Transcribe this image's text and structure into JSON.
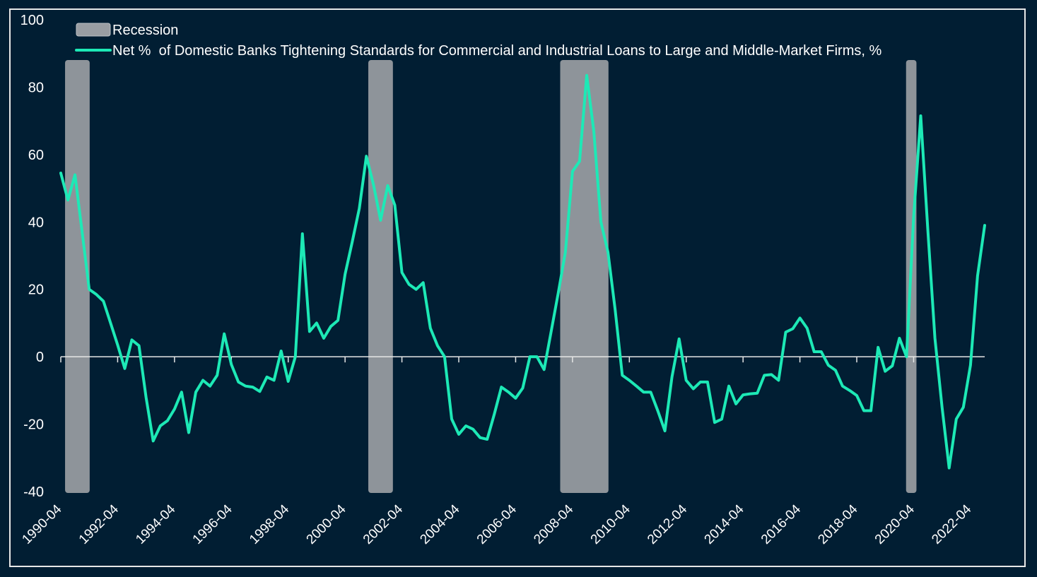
{
  "chart_data": {
    "type": "line",
    "title": "",
    "xlabel": "",
    "ylabel": "",
    "ylim": [
      -40,
      100
    ],
    "yticks": [
      -40,
      -20,
      0,
      20,
      40,
      60,
      80,
      100
    ],
    "xlim": [
      "1990-04",
      "1990-01"
    ],
    "xticks": [
      "1990-04",
      "1992-04",
      "1994-04",
      "1996-04",
      "1998-04",
      "2000-04",
      "2002-04",
      "2004-04",
      "2006-04",
      "2008-04",
      "2010-04",
      "2012-04",
      "2014-04",
      "2016-04",
      "2018-04",
      "2020-04",
      "2022-04"
    ],
    "grid": false,
    "legend_position": "top-left",
    "recession_label": "Recession",
    "recession_color": "#9a9ea3",
    "recessions": [
      {
        "start": "1990-07",
        "end": "1991-03"
      },
      {
        "start": "2001-03",
        "end": "2001-11"
      },
      {
        "start": "2007-12",
        "end": "2009-06"
      },
      {
        "start": "2020-02",
        "end": "2020-04"
      }
    ],
    "series": [
      {
        "name": "Net %  of Domestic Banks Tightening Standards for Commercial and Industrial Loans to Large and Middle-Market Firms, %",
        "color": "#1de9b6",
        "points": [
          [
            "1990-04",
            54.5
          ],
          [
            "1990-07",
            46.5
          ],
          [
            "1990-10",
            54
          ],
          [
            "1991-01",
            37
          ],
          [
            "1991-04",
            20
          ],
          [
            "1991-07",
            18.5
          ],
          [
            "1991-10",
            16.5
          ],
          [
            "1992-01",
            10
          ],
          [
            "1992-04",
            3.5
          ],
          [
            "1992-07",
            -3.5
          ],
          [
            "1992-10",
            5
          ],
          [
            "1993-01",
            3.3
          ],
          [
            "1993-04",
            -12
          ],
          [
            "1993-07",
            -25
          ],
          [
            "1993-10",
            -20.5
          ],
          [
            "1994-01",
            -19
          ],
          [
            "1994-04",
            -15.5
          ],
          [
            "1994-07",
            -10.5
          ],
          [
            "1994-10",
            -22.5
          ],
          [
            "1995-01",
            -10.5
          ],
          [
            "1995-04",
            -7
          ],
          [
            "1995-07",
            -8.7
          ],
          [
            "1995-10",
            -5.5
          ],
          [
            "1996-01",
            6.8
          ],
          [
            "1996-04",
            -2.3
          ],
          [
            "1996-07",
            -7.5
          ],
          [
            "1996-10",
            -8.7
          ],
          [
            "1997-01",
            -9
          ],
          [
            "1997-04",
            -10.3
          ],
          [
            "1997-07",
            -6
          ],
          [
            "1997-10",
            -7
          ],
          [
            "1998-01",
            1.7
          ],
          [
            "1998-04",
            -7.3
          ],
          [
            "1998-07",
            0
          ],
          [
            "1998-10",
            36.5
          ],
          [
            "1999-01",
            7.5
          ],
          [
            "1999-04",
            10
          ],
          [
            "1999-07",
            5.5
          ],
          [
            "1999-10",
            9
          ],
          [
            "2000-01",
            10.8
          ],
          [
            "2000-04",
            24.5
          ],
          [
            "2000-07",
            34
          ],
          [
            "2000-10",
            44
          ],
          [
            "2001-01",
            59.5
          ],
          [
            "2001-04",
            51
          ],
          [
            "2001-07",
            40.5
          ],
          [
            "2001-10",
            50.8
          ],
          [
            "2002-01",
            45
          ],
          [
            "2002-04",
            25
          ],
          [
            "2002-07",
            21.5
          ],
          [
            "2002-10",
            20
          ],
          [
            "2003-01",
            22
          ],
          [
            "2003-04",
            8.5
          ],
          [
            "2003-07",
            3.3
          ],
          [
            "2003-10",
            0
          ],
          [
            "2004-01",
            -18.5
          ],
          [
            "2004-04",
            -23
          ],
          [
            "2004-07",
            -20.5
          ],
          [
            "2004-10",
            -21.5
          ],
          [
            "2005-01",
            -24
          ],
          [
            "2005-04",
            -24.5
          ],
          [
            "2005-07",
            -17
          ],
          [
            "2005-10",
            -9
          ],
          [
            "2006-01",
            -10.5
          ],
          [
            "2006-04",
            -12.3
          ],
          [
            "2006-07",
            -9.3
          ],
          [
            "2006-10",
            0
          ],
          [
            "2007-01",
            0
          ],
          [
            "2007-04",
            -3.8
          ],
          [
            "2007-07",
            7.5
          ],
          [
            "2007-10",
            19
          ],
          [
            "2008-01",
            31
          ],
          [
            "2008-04",
            55
          ],
          [
            "2008-07",
            58
          ],
          [
            "2008-10",
            83.5
          ],
          [
            "2009-01",
            67
          ],
          [
            "2009-04",
            40
          ],
          [
            "2009-07",
            31
          ],
          [
            "2009-10",
            14
          ],
          [
            "2010-01",
            -5.5
          ],
          [
            "2010-04",
            -7
          ],
          [
            "2010-07",
            -8.7
          ],
          [
            "2010-10",
            -10.5
          ],
          [
            "2011-01",
            -10.5
          ],
          [
            "2011-04",
            -16
          ],
          [
            "2011-07",
            -22
          ],
          [
            "2011-10",
            -6
          ],
          [
            "2012-01",
            5.3
          ],
          [
            "2012-04",
            -7
          ],
          [
            "2012-07",
            -9.5
          ],
          [
            "2012-10",
            -7.5
          ],
          [
            "2013-01",
            -7.5
          ],
          [
            "2013-04",
            -19.5
          ],
          [
            "2013-07",
            -18.5
          ],
          [
            "2013-10",
            -8.7
          ],
          [
            "2014-01",
            -14
          ],
          [
            "2014-04",
            -11.3
          ],
          [
            "2014-07",
            -11
          ],
          [
            "2014-10",
            -10.8
          ],
          [
            "2015-01",
            -5.5
          ],
          [
            "2015-04",
            -5.3
          ],
          [
            "2015-07",
            -7
          ],
          [
            "2015-10",
            7.3
          ],
          [
            "2016-01",
            8.3
          ],
          [
            "2016-04",
            11.5
          ],
          [
            "2016-07",
            8.5
          ],
          [
            "2016-10",
            1.5
          ],
          [
            "2017-01",
            1.5
          ],
          [
            "2017-04",
            -2.5
          ],
          [
            "2017-07",
            -4
          ],
          [
            "2017-10",
            -8.7
          ],
          [
            "2018-01",
            -10
          ],
          [
            "2018-04",
            -11.5
          ],
          [
            "2018-07",
            -16
          ],
          [
            "2018-10",
            -16
          ],
          [
            "2019-01",
            2.8
          ],
          [
            "2019-04",
            -4.3
          ],
          [
            "2019-07",
            -2.7
          ],
          [
            "2019-10",
            5.5
          ],
          [
            "2020-01",
            0
          ],
          [
            "2020-04",
            41.5
          ],
          [
            "2020-07",
            71.5
          ],
          [
            "2020-10",
            37.5
          ],
          [
            "2021-01",
            5.5
          ],
          [
            "2021-04",
            -15
          ],
          [
            "2021-07",
            -33
          ],
          [
            "2021-10",
            -18.5
          ],
          [
            "2022-01",
            -15
          ],
          [
            "2022-04",
            -2.5
          ],
          [
            "2022-07",
            24
          ],
          [
            "2022-10",
            39
          ]
        ]
      }
    ]
  }
}
